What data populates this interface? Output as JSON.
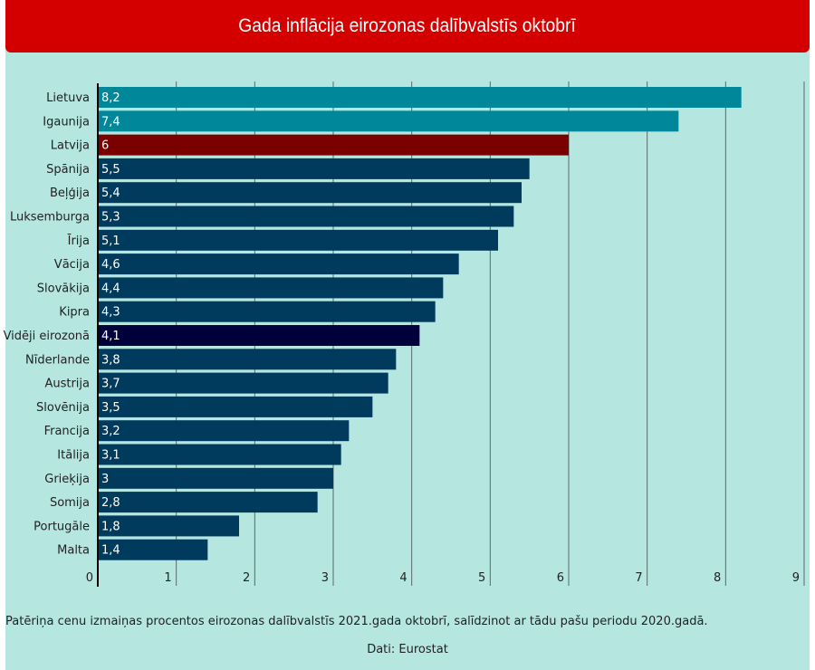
{
  "title": "Gada inflācija eirozonas dalībvalstīs oktobrī",
  "note": "Patēriņa cenu izmaiņas procentos eirozonas dalībvalstīs 2021.gada oktobrī, salīdzinot ar tādu pašu periodu 2020.gadā.",
  "source": "Dati: Eurostat",
  "chart_data": {
    "type": "bar",
    "orientation": "horizontal",
    "categories": [
      "Lietuva",
      "Igaunija",
      "Latvija",
      "Spānija",
      "Beļģija",
      "Luksemburga",
      "Īrija",
      "Vācija",
      "Slovākija",
      "Kipra",
      "Vidēji eirozonā",
      "Nīderlande",
      "Austrija",
      "Slovēnija",
      "Francija",
      "Itālija",
      "Grieķija",
      "Somija",
      "Portugāle",
      "Malta"
    ],
    "values": [
      8.2,
      7.4,
      6,
      5.5,
      5.4,
      5.3,
      5.1,
      4.6,
      4.4,
      4.3,
      4.1,
      3.8,
      3.7,
      3.5,
      3.2,
      3.1,
      3,
      2.8,
      1.8,
      1.4
    ],
    "value_labels": [
      "8,2",
      "7,4",
      "6",
      "5,5",
      "5,4",
      "5,3",
      "5,1",
      "4,6",
      "4,4",
      "4,3",
      "4,1",
      "3,8",
      "3,7",
      "3,5",
      "3,2",
      "3,1",
      "3",
      "2,8",
      "1,8",
      "1,4"
    ],
    "colors": [
      "#00879a",
      "#00879a",
      "#7a0000",
      "#003a5c",
      "#003a5c",
      "#003a5c",
      "#003a5c",
      "#003a5c",
      "#003a5c",
      "#003a5c",
      "#00003a",
      "#003a5c",
      "#003a5c",
      "#003a5c",
      "#003a5c",
      "#003a5c",
      "#003a5c",
      "#003a5c",
      "#003a5c",
      "#003a5c"
    ],
    "xlim": [
      0,
      9
    ],
    "xticks": [
      "0",
      "1",
      "2",
      "3",
      "4",
      "5",
      "6",
      "7",
      "8",
      "9"
    ],
    "grid": true,
    "xlabel": "",
    "ylabel": ""
  }
}
